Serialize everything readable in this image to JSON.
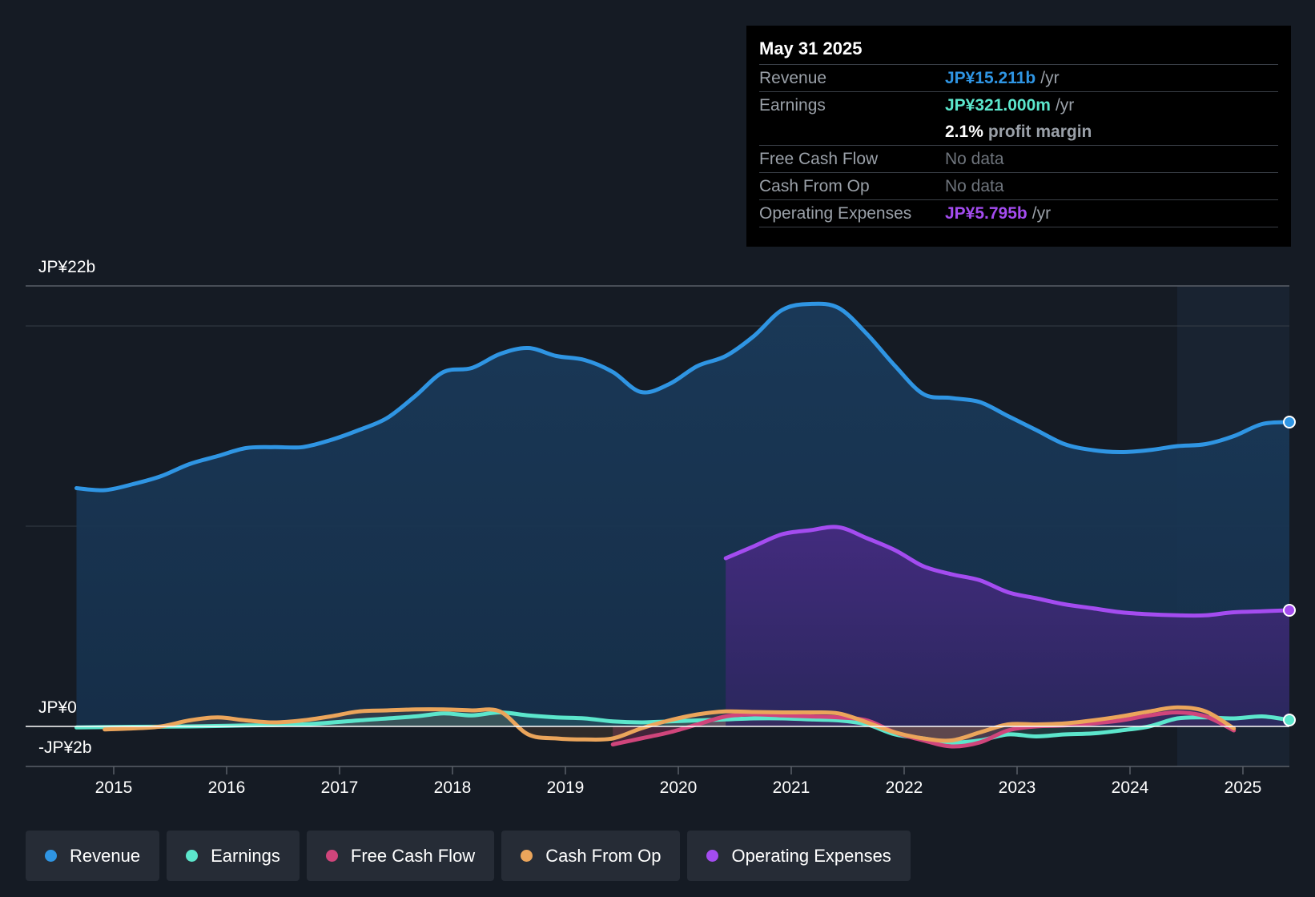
{
  "colors": {
    "revenue": "#2f95e3",
    "earnings": "#5ce6cc",
    "free_cash_flow": "#d0457b",
    "cash_from_op": "#eba55b",
    "operating_expenses": "#a44cf0",
    "background": "#151b24"
  },
  "tooltip": {
    "date": "May 31 2025",
    "rows": [
      {
        "label": "Revenue",
        "value": "JP¥15.211b",
        "unit": "/yr",
        "color": "#2f95e3"
      },
      {
        "label": "Earnings",
        "value": "JP¥321.000m",
        "unit": "/yr",
        "color": "#5ce6cc"
      },
      {
        "label": "",
        "value": "2.1%",
        "unit": "profit margin",
        "color": "#ffffff"
      },
      {
        "label": "Free Cash Flow",
        "value": "No data",
        "unit": "",
        "color": "muted"
      },
      {
        "label": "Cash From Op",
        "value": "No data",
        "unit": "",
        "color": "muted"
      },
      {
        "label": "Operating Expenses",
        "value": "JP¥5.795b",
        "unit": "/yr",
        "color": "#a44cf0"
      }
    ]
  },
  "legend": [
    {
      "label": "Revenue",
      "color": "#2f95e3"
    },
    {
      "label": "Earnings",
      "color": "#5ce6cc"
    },
    {
      "label": "Free Cash Flow",
      "color": "#d0457b"
    },
    {
      "label": "Cash From Op",
      "color": "#eba55b"
    },
    {
      "label": "Operating Expenses",
      "color": "#a44cf0"
    }
  ],
  "chart_data": {
    "type": "area",
    "title": "",
    "xlabel": "",
    "ylabel": "",
    "y_axis_labels": {
      "top": "JP¥22b",
      "zero": "JP¥0",
      "bottom": "-JP¥2b"
    },
    "ylim": [
      -2,
      22
    ],
    "xlim": [
      2014.2,
      2025.42
    ],
    "x_ticks": [
      "2015",
      "2016",
      "2017",
      "2018",
      "2019",
      "2020",
      "2021",
      "2022",
      "2023",
      "2024",
      "2025"
    ],
    "gridlines_y": [
      20,
      10
    ],
    "forecast_region_start": 2024.42,
    "series": [
      {
        "name": "Revenue",
        "color": "#2f95e3",
        "x": [
          2014.67,
          2014.92,
          2015.17,
          2015.42,
          2015.67,
          2015.92,
          2016.17,
          2016.42,
          2016.67,
          2016.92,
          2017.17,
          2017.42,
          2017.67,
          2017.92,
          2018.17,
          2018.42,
          2018.67,
          2018.92,
          2019.17,
          2019.42,
          2019.67,
          2019.92,
          2020.17,
          2020.42,
          2020.67,
          2020.92,
          2021.17,
          2021.42,
          2021.67,
          2021.92,
          2022.17,
          2022.42,
          2022.67,
          2022.92,
          2023.17,
          2023.42,
          2023.67,
          2023.92,
          2024.17,
          2024.42,
          2024.67,
          2024.92,
          2025.17,
          2025.42
        ],
        "values": [
          11.9,
          11.8,
          12.1,
          12.5,
          13.1,
          13.5,
          13.9,
          13.95,
          13.95,
          14.3,
          14.8,
          15.4,
          16.5,
          17.7,
          17.9,
          18.6,
          18.9,
          18.5,
          18.3,
          17.7,
          16.7,
          17.1,
          18.0,
          18.5,
          19.5,
          20.8,
          21.1,
          20.9,
          19.6,
          18.0,
          16.6,
          16.4,
          16.2,
          15.5,
          14.8,
          14.1,
          13.8,
          13.7,
          13.8,
          14.0,
          14.1,
          14.5,
          15.1,
          15.2
        ]
      },
      {
        "name": "Earnings",
        "color": "#5ce6cc",
        "x": [
          2014.67,
          2015.17,
          2015.67,
          2016.17,
          2016.67,
          2017.17,
          2017.67,
          2017.92,
          2018.17,
          2018.42,
          2018.67,
          2018.92,
          2019.17,
          2019.42,
          2019.67,
          2019.92,
          2020.17,
          2020.42,
          2020.67,
          2020.92,
          2021.17,
          2021.42,
          2021.67,
          2021.92,
          2022.17,
          2022.42,
          2022.67,
          2022.92,
          2023.17,
          2023.42,
          2023.67,
          2023.92,
          2024.17,
          2024.42,
          2024.67,
          2024.92,
          2025.17,
          2025.42
        ],
        "values": [
          -0.05,
          -0.02,
          0.0,
          0.05,
          0.1,
          0.3,
          0.5,
          0.65,
          0.55,
          0.7,
          0.55,
          0.45,
          0.4,
          0.25,
          0.2,
          0.25,
          0.3,
          0.35,
          0.4,
          0.4,
          0.35,
          0.3,
          0.1,
          -0.4,
          -0.6,
          -0.8,
          -0.7,
          -0.4,
          -0.5,
          -0.4,
          -0.35,
          -0.2,
          0.0,
          0.4,
          0.45,
          0.4,
          0.5,
          0.32
        ]
      },
      {
        "name": "Free Cash Flow",
        "color": "#d0457b",
        "x": [
          2019.42,
          2019.67,
          2019.92,
          2020.17,
          2020.42,
          2020.67,
          2020.92,
          2021.17,
          2021.42,
          2021.67,
          2021.92,
          2022.17,
          2022.42,
          2022.67,
          2022.92,
          2023.17,
          2023.42,
          2023.67,
          2023.92,
          2024.17,
          2024.42,
          2024.67,
          2024.92
        ],
        "values": [
          -0.9,
          -0.6,
          -0.3,
          0.1,
          0.5,
          0.6,
          0.55,
          0.5,
          0.45,
          0.3,
          -0.3,
          -0.7,
          -1.0,
          -0.8,
          -0.2,
          0.0,
          0.05,
          0.15,
          0.3,
          0.55,
          0.7,
          0.5,
          -0.2
        ]
      },
      {
        "name": "Cash From Op",
        "color": "#eba55b",
        "x": [
          2014.92,
          2015.17,
          2015.42,
          2015.67,
          2015.92,
          2016.17,
          2016.42,
          2016.67,
          2016.92,
          2017.17,
          2017.42,
          2017.67,
          2017.92,
          2018.17,
          2018.42,
          2018.67,
          2018.92,
          2019.17,
          2019.42,
          2019.67,
          2019.92,
          2020.17,
          2020.42,
          2020.67,
          2020.92,
          2021.17,
          2021.42,
          2021.67,
          2021.92,
          2022.17,
          2022.42,
          2022.67,
          2022.92,
          2023.17,
          2023.42,
          2023.67,
          2023.92,
          2024.17,
          2024.42,
          2024.67,
          2024.92
        ],
        "values": [
          -0.15,
          -0.1,
          0.0,
          0.3,
          0.45,
          0.3,
          0.2,
          0.3,
          0.5,
          0.75,
          0.8,
          0.85,
          0.85,
          0.8,
          0.75,
          -0.4,
          -0.6,
          -0.65,
          -0.6,
          -0.1,
          0.3,
          0.6,
          0.75,
          0.72,
          0.7,
          0.7,
          0.65,
          0.2,
          -0.3,
          -0.6,
          -0.7,
          -0.3,
          0.1,
          0.1,
          0.15,
          0.3,
          0.5,
          0.75,
          0.95,
          0.75,
          -0.1
        ]
      },
      {
        "name": "Operating Expenses",
        "color": "#a44cf0",
        "x": [
          2020.42,
          2020.67,
          2020.92,
          2021.17,
          2021.42,
          2021.67,
          2021.92,
          2022.17,
          2022.42,
          2022.67,
          2022.92,
          2023.17,
          2023.42,
          2023.67,
          2023.92,
          2024.17,
          2024.42,
          2024.67,
          2024.92,
          2025.17,
          2025.42
        ],
        "values": [
          8.4,
          9.0,
          9.6,
          9.8,
          9.95,
          9.4,
          8.8,
          8.0,
          7.6,
          7.3,
          6.7,
          6.4,
          6.1,
          5.9,
          5.7,
          5.6,
          5.55,
          5.55,
          5.7,
          5.75,
          5.8
        ]
      }
    ]
  }
}
